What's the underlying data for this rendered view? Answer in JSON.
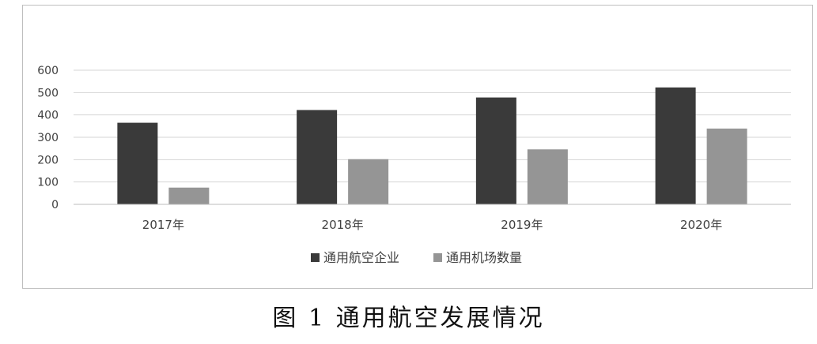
{
  "chart_data": {
    "type": "bar",
    "categories": [
      "2017年",
      "2018年",
      "2019年",
      "2020年"
    ],
    "series": [
      {
        "name": "通用航空企业",
        "values": [
          365,
          422,
          478,
          523
        ],
        "color": "#3a3a3a"
      },
      {
        "name": "通用机场数量",
        "values": [
          75,
          202,
          246,
          339
        ],
        "color": "#959595"
      }
    ],
    "ylim": [
      0,
      600
    ],
    "yticks": [
      0,
      100,
      200,
      300,
      400,
      500,
      600
    ],
    "grid": true,
    "legend": "bottom"
  },
  "caption": "图 1  通用航空发展情况"
}
